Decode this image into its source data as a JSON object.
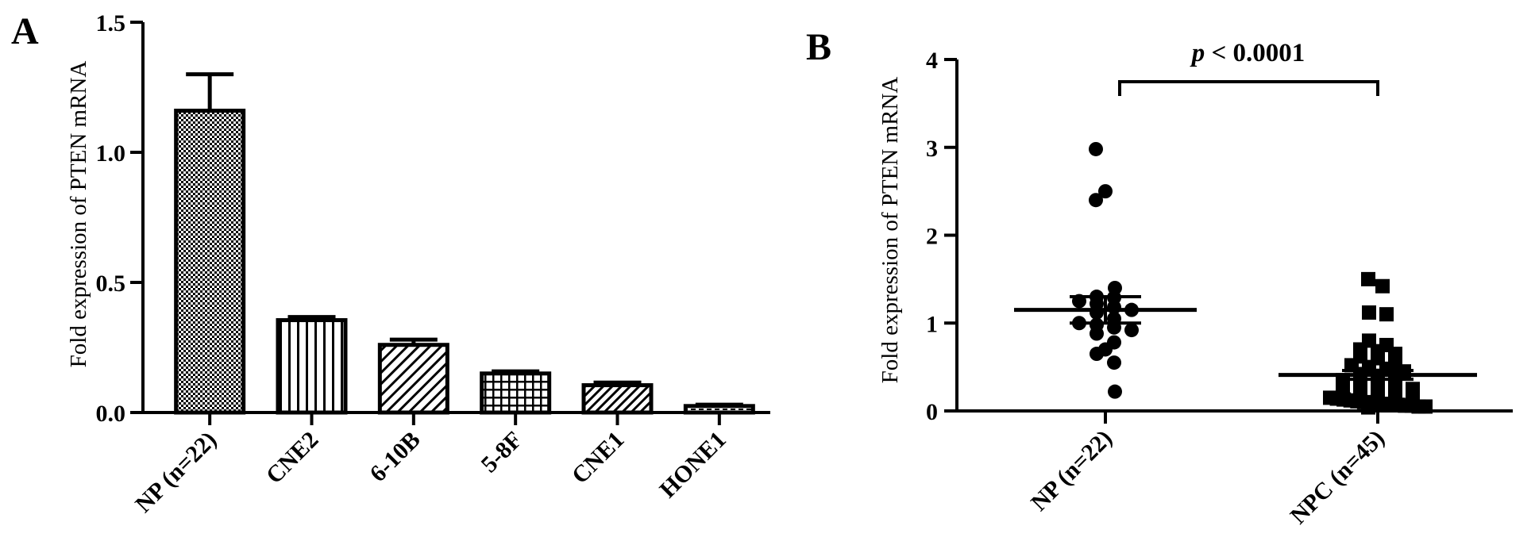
{
  "chart_data": [
    {
      "panel": "A",
      "type": "bar",
      "ylabel": "Fold expression of PTEN mRNA",
      "ylim": [
        0,
        1.5
      ],
      "yticks": [
        "0.0",
        "0.5",
        "1.0",
        "1.5"
      ],
      "categories": [
        "NP (n=22)",
        "CNE2",
        "6-10B",
        "5-8F",
        "CNE1",
        "HONE1"
      ],
      "values": [
        1.16,
        0.355,
        0.26,
        0.15,
        0.105,
        0.025
      ],
      "errors": [
        0.14,
        0.012,
        0.02,
        0.008,
        0.01,
        0.005
      ],
      "patterns": [
        "checker",
        "vertical",
        "diagonal",
        "grid",
        "diagonal-dense",
        "horizontal-dashed"
      ],
      "grid": false
    },
    {
      "panel": "B",
      "type": "scatter",
      "ylabel": "Fold expression of PTEN mRNA",
      "ylim": [
        0,
        4
      ],
      "yticks": [
        "0",
        "1",
        "2",
        "3",
        "4"
      ],
      "categories": [
        "NP (n=22)",
        "NPC (n=45)"
      ],
      "annotation": "p < 0.0001",
      "means": [
        1.15,
        0.41
      ],
      "sems": [
        0.15,
        0.05
      ],
      "series": [
        {
          "marker": "circle",
          "values": [
            2.98,
            2.5,
            2.4,
            1.4,
            1.29,
            1.3,
            1.25,
            1.22,
            1.18,
            1.15,
            1.12,
            1.05,
            1.0,
            0.98,
            0.95,
            0.92,
            0.88,
            0.78,
            0.7,
            0.65,
            0.55,
            0.22
          ]
        },
        {
          "marker": "square",
          "values": [
            1.5,
            1.42,
            1.12,
            1.1,
            0.8,
            0.75,
            0.7,
            0.68,
            0.65,
            0.62,
            0.6,
            0.55,
            0.52,
            0.5,
            0.48,
            0.45,
            0.42,
            0.4,
            0.38,
            0.35,
            0.32,
            0.3,
            0.28,
            0.25,
            0.22,
            0.2,
            0.18,
            0.17,
            0.16,
            0.15,
            0.14,
            0.13,
            0.12,
            0.11,
            0.1,
            0.1,
            0.09,
            0.08,
            0.08,
            0.07,
            0.06,
            0.06,
            0.05,
            0.05,
            0.04
          ]
        }
      ],
      "grid": false
    }
  ]
}
